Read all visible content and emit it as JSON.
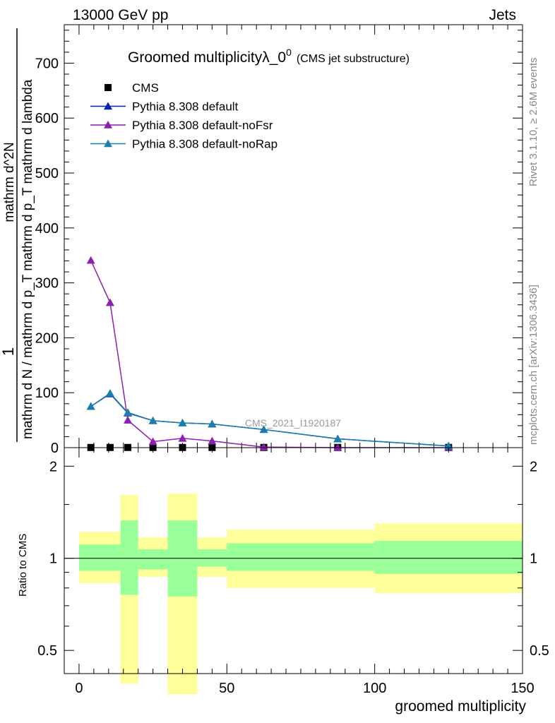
{
  "header": {
    "left": "13000 GeV pp",
    "right": "Jets"
  },
  "side_labels": {
    "top": "Rivet 3.1.10, ≥ 2.6M events",
    "bottom": "mcplots.cern.ch [arXiv:1306.3436]"
  },
  "chart_data": [
    {
      "type": "line",
      "title": "Groomed multiplicityλ_0",
      "title_superscript": "0",
      "title_suffix": "(CMS jet substructure)",
      "watermark": "CMS_2021_I1920187",
      "ylabel_numerator": "1",
      "ylabel_main": "mathrm d N / mathrm d p_T mathrm d p_T mathrm d lambda",
      "ylabel_denominator": "mathrm d N / mathrm d p_T mathrm d p_T mathrm d lambda",
      "ylabel_top": "mathrm d^2N",
      "xlim": [
        -5,
        150
      ],
      "ylim": [
        0,
        770
      ],
      "yticks": [
        0,
        100,
        200,
        300,
        400,
        500,
        600,
        700
      ],
      "legend_position": "top-left",
      "series": [
        {
          "name": "CMS",
          "marker": "square",
          "color": "#000000",
          "x": [
            4,
            10.5,
            16.5,
            25,
            35,
            45,
            62.5,
            87.5,
            125
          ],
          "y": [
            0.3,
            0.3,
            0.3,
            0.3,
            0.3,
            0.3,
            0.3,
            0.3,
            0.3
          ]
        },
        {
          "name": "Pythia 8.308 default",
          "marker": "triangle",
          "color": "#0b1fb5",
          "x": [
            4,
            10.5,
            16.5,
            25,
            35,
            45,
            62.5,
            87.5,
            125
          ],
          "y": [
            75,
            98,
            63,
            49,
            45,
            43,
            33,
            16,
            3
          ]
        },
        {
          "name": "Pythia 8.308 default-noFsr",
          "marker": "triangle",
          "color": "#8b1fb0",
          "x": [
            4,
            10.5,
            16.5,
            25,
            35,
            45,
            62.5,
            87.5,
            125
          ],
          "y": [
            341,
            264,
            50,
            11,
            17,
            12,
            1,
            0,
            0
          ]
        },
        {
          "name": "Pythia 8.308 default-noRap",
          "marker": "triangle",
          "color": "#1a7faa",
          "x": [
            4,
            10.5,
            16.5,
            25,
            35,
            45,
            62.5,
            87.5,
            125
          ],
          "y": [
            75,
            99,
            64,
            49,
            45,
            43,
            33,
            16,
            3
          ]
        }
      ]
    },
    {
      "type": "area",
      "ylabel": "Ratio to CMS",
      "xlabel": "groomed multiplicity",
      "xlim": [
        -5,
        150
      ],
      "xticks": [
        0,
        50,
        100,
        150
      ],
      "ylim": [
        0.42,
        2.3
      ],
      "log_y": true,
      "yticks": [
        0.5,
        1,
        2
      ],
      "reference_line": 1,
      "colors": {
        "inner": "#99ff99",
        "outer": "#ffff99"
      },
      "bins": [
        {
          "x0": 0,
          "x1": 14,
          "inner": [
            0.91,
            1.11
          ],
          "outer": [
            0.83,
            1.22
          ]
        },
        {
          "x0": 14,
          "x1": 20,
          "inner": [
            0.76,
            1.33
          ],
          "outer": [
            0.39,
            1.61
          ]
        },
        {
          "x0": 20,
          "x1": 30,
          "inner": [
            0.92,
            1.07
          ],
          "outer": [
            0.87,
            1.17
          ]
        },
        {
          "x0": 30,
          "x1": 40,
          "inner": [
            0.75,
            1.33
          ],
          "outer": [
            0.36,
            1.63
          ]
        },
        {
          "x0": 40,
          "x1": 50,
          "inner": [
            0.94,
            1.07
          ],
          "outer": [
            0.87,
            1.17
          ]
        },
        {
          "x0": 50,
          "x1": 75,
          "inner": [
            0.91,
            1.12
          ],
          "outer": [
            0.8,
            1.24
          ]
        },
        {
          "x0": 75,
          "x1": 100,
          "inner": [
            0.91,
            1.12
          ],
          "outer": [
            0.8,
            1.24
          ]
        },
        {
          "x0": 100,
          "x1": 150,
          "inner": [
            0.89,
            1.14
          ],
          "outer": [
            0.77,
            1.3
          ]
        }
      ]
    }
  ]
}
